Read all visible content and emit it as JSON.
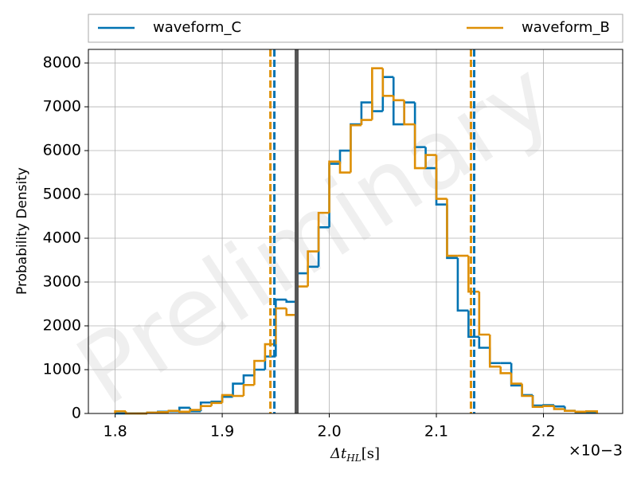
{
  "chart_data": {
    "type": "step_histogram",
    "watermark": "Preliminary",
    "xlabel": "Δt",
    "xlabel_sub": "HL",
    "xlabel_unit": "[s]",
    "ylabel": "Probability Density",
    "x_offset_label": "×10−3",
    "xlim": [
      1.775,
      2.274
    ],
    "ylim": [
      0,
      8310
    ],
    "xticks": [
      1.8,
      1.9,
      {
        "value": 2,
        "label": "2.0"
      },
      2.1,
      2.2
    ],
    "yticks": [
      0,
      1000,
      2000,
      3000,
      4000,
      5000,
      6000,
      7000,
      8000
    ],
    "grid": true,
    "legend_position": "top",
    "bins": [
      1.8,
      1.81,
      1.82,
      1.83,
      1.84,
      1.85,
      1.86,
      1.87,
      1.88,
      1.89,
      1.9,
      1.91,
      1.92,
      1.93,
      1.94,
      1.95,
      1.96,
      1.97,
      1.98,
      1.99,
      2.0,
      2.01,
      2.02,
      2.03,
      2.04,
      2.05,
      2.06,
      2.07,
      2.08,
      2.09,
      2.1,
      2.11,
      2.12,
      2.13,
      2.14,
      2.15,
      2.16,
      2.17,
      2.18,
      2.19,
      2.2,
      2.21,
      2.22,
      2.23,
      2.24,
      2.25
    ],
    "series": [
      {
        "name": "waveform_C",
        "color": "#0173b2",
        "values": [
          0,
          0,
          0,
          20,
          40,
          50,
          130,
          50,
          250,
          270,
          380,
          680,
          870,
          1000,
          1300,
          2600,
          2550,
          3200,
          3350,
          4250,
          5700,
          6000,
          6600,
          7100,
          6900,
          7680,
          6600,
          7100,
          6080,
          5600,
          4770,
          3550,
          2350,
          1750,
          1500,
          1150,
          1150,
          640,
          420,
          180,
          190,
          160,
          60,
          30,
          20
        ]
      },
      {
        "name": "waveform_B",
        "color": "#de8f05",
        "values": [
          50,
          0,
          0,
          20,
          30,
          60,
          40,
          80,
          170,
          240,
          420,
          400,
          650,
          1200,
          1580,
          2400,
          2250,
          2900,
          3700,
          4580,
          5750,
          5500,
          6580,
          6700,
          7880,
          7250,
          7150,
          6600,
          5600,
          5900,
          4900,
          3600,
          3600,
          2780,
          1800,
          1070,
          920,
          680,
          400,
          150,
          170,
          100,
          60,
          40,
          50
        ]
      }
    ],
    "vlines": [
      {
        "x": 1.9695,
        "color": "#555555",
        "style": "solid"
      },
      {
        "x": 1.9487,
        "color": "#0173b2",
        "style": "dashed"
      },
      {
        "x": 1.945,
        "color": "#de8f05",
        "style": "dashed"
      },
      {
        "x": 2.1353,
        "color": "#0173b2",
        "style": "dashed"
      },
      {
        "x": 2.1323,
        "color": "#de8f05",
        "style": "dashed"
      }
    ]
  }
}
